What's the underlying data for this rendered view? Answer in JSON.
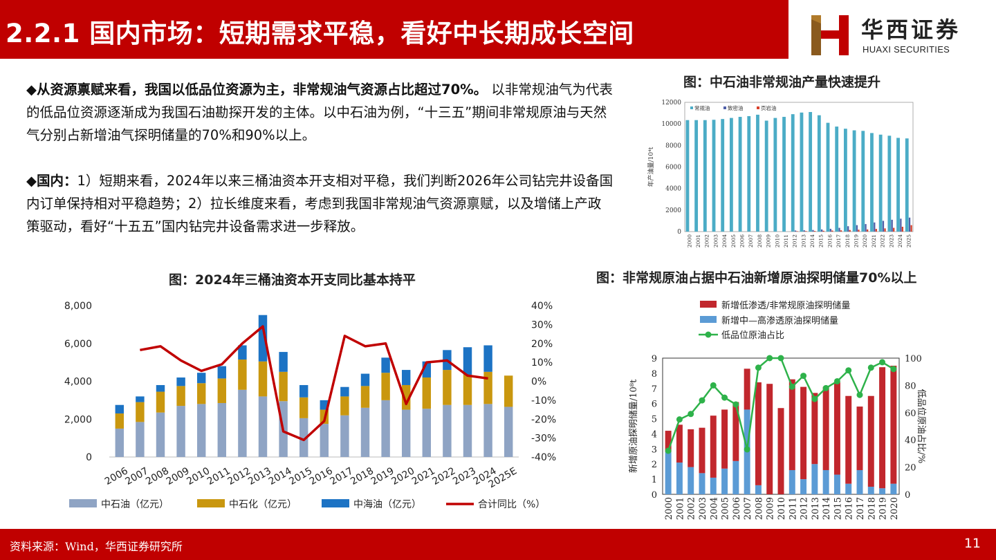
{
  "header": {
    "title": "2.2.1 国内市场：短期需求平稳，看好中长期成长空间"
  },
  "logo": {
    "cn": "华西证券",
    "en": "HUAXI SECURITIES"
  },
  "para1": {
    "bullet": "◆",
    "bold": "从资源禀赋来看，我国以低品位资源为主，非常规油气资源占比超过70%。",
    "text": "以非常规油气为代表的低品位资源逐渐成为我国石油勘探开发的主体。以中石油为例，“十三五”期间非常规原油与天然气分别占新增油气探明储量的70%和90%以上。"
  },
  "para2": {
    "bullet": "◆",
    "bold": "国内：",
    "text": "1）短期来看，2024年以来三桶油资本开支相对平稳，我们判断2026年公司钻完井设备国内订单保持相对平稳趋势；2）拉长维度来看，考虑到我国非常规油气资源禀赋，以及增储上产政策驱动，看好“十五五”国内钻完井设备需求进一步释放。"
  },
  "captions": {
    "top_right": "图：中石油非常规油产量快速提升",
    "bottom_left": "图：2024年三桶油资本开支同比基本持平",
    "bottom_right": "图：非常规原油占据中石油新增原油探明储量70%以上"
  },
  "footer": {
    "source": "资料来源：Wind，华西证券研究所",
    "page": "11"
  },
  "chart_data": [
    {
      "type": "bar",
      "title": "图：中石油非常规油产量快速提升",
      "ylabel": "年产油量/10⁴t",
      "ylim": [
        0,
        12000
      ],
      "yticks": [
        0,
        2000,
        4000,
        6000,
        8000,
        10000,
        12000
      ],
      "categories": [
        "2000",
        "2001",
        "2002",
        "2003",
        "2004",
        "2005",
        "2006",
        "2007",
        "2008",
        "2009",
        "2010",
        "2011",
        "2012",
        "2013",
        "2014",
        "2015",
        "2016",
        "2017",
        "2018",
        "2019",
        "2020",
        "2021",
        "2022",
        "2023",
        "2024",
        "2025"
      ],
      "series": [
        {
          "name": "常规油",
          "color": "#4bacc6",
          "values": [
            10350,
            10350,
            10350,
            10380,
            10450,
            10550,
            10650,
            10720,
            10850,
            10300,
            10550,
            10650,
            10900,
            11050,
            11100,
            10800,
            10100,
            9750,
            9550,
            9400,
            9350,
            9150,
            9000,
            8900,
            8700,
            8650
          ]
        },
        {
          "name": "致密油",
          "color": "#4f5fa8",
          "values": [
            0,
            0,
            0,
            0,
            0,
            0,
            0,
            0,
            0,
            0,
            0,
            0,
            100,
            120,
            150,
            200,
            260,
            350,
            500,
            600,
            700,
            850,
            1000,
            1100,
            1200,
            1300
          ]
        },
        {
          "name": "页岩油",
          "color": "#d9412b",
          "values": [
            0,
            0,
            0,
            0,
            0,
            0,
            0,
            0,
            0,
            0,
            0,
            0,
            40,
            50,
            60,
            80,
            100,
            120,
            150,
            180,
            200,
            250,
            300,
            350,
            450,
            600
          ]
        }
      ]
    },
    {
      "type": "bar",
      "title": "图：2024年三桶油资本开支同比基本持平",
      "categories": [
        "2006",
        "2007",
        "2008",
        "2009",
        "2010",
        "2011",
        "2012",
        "2013",
        "2014",
        "2015",
        "2016",
        "2017",
        "2018",
        "2019",
        "2020",
        "2021",
        "2022",
        "2023",
        "2024",
        "2025E"
      ],
      "ylim": [
        0,
        8000
      ],
      "yticks": [
        "0",
        "2,000",
        "4,000",
        "6,000",
        "8,000"
      ],
      "y2lim": [
        -40,
        40
      ],
      "y2ticks": [
        "-40%",
        "-30%",
        "-20%",
        "-10%",
        "0%",
        "10%",
        "20%",
        "30%",
        "40%"
      ],
      "series": [
        {
          "name": "中石油（亿元）",
          "color": "#8fa4c4",
          "values": [
            1500,
            1850,
            2350,
            2700,
            2800,
            2850,
            3550,
            3200,
            2950,
            2050,
            1750,
            2200,
            2600,
            3000,
            2500,
            2550,
            2750,
            2750,
            2800,
            2650
          ]
        },
        {
          "name": "中石化（亿元）",
          "color": "#c9970f",
          "values": [
            800,
            1050,
            1100,
            1050,
            1100,
            1300,
            1600,
            1850,
            1550,
            1100,
            750,
            1000,
            1150,
            1450,
            1300,
            1650,
            1850,
            1600,
            1700,
            1650
          ]
        },
        {
          "name": "中海油（亿元）",
          "color": "#1c73c4",
          "values": [
            450,
            300,
            350,
            450,
            550,
            650,
            750,
            2450,
            1050,
            650,
            500,
            500,
            650,
            800,
            800,
            850,
            1050,
            1450,
            1400,
            0
          ]
        },
        {
          "name": "合计同比（%）",
          "color": "#c00000",
          "type": "line",
          "values": [
            null,
            16.5,
            18.5,
            11,
            5.5,
            9,
            20,
            29,
            -26.5,
            -31,
            -21,
            24,
            18.5,
            20,
            -12,
            10,
            11,
            3,
            1.5,
            null
          ]
        }
      ]
    },
    {
      "type": "bar",
      "title": "图：非常规原油占据中石油新增原油探明储量70%以上",
      "ylabel": "新增原油探明储量/10⁸t",
      "y2label": "低品位原油占比/%",
      "ylim": [
        0,
        9
      ],
      "y2lim": [
        0,
        100
      ],
      "categories": [
        "2000",
        "2001",
        "2002",
        "2003",
        "2004",
        "2005",
        "2006",
        "2007",
        "2008",
        "2009",
        "2010",
        "2011",
        "2012",
        "2013",
        "2014",
        "2015",
        "2016",
        "2017",
        "2018",
        "2019",
        "2020"
      ],
      "series": [
        {
          "name": "新增低渗透/非常规原油探明储量",
          "color": "#c1272d",
          "values": [
            1.4,
            2.5,
            2.5,
            3.0,
            4.1,
            3.9,
            3.9,
            2.7,
            6.8,
            7.3,
            5.7,
            6.0,
            6.1,
            4.7,
            5.5,
            6.1,
            5.8,
            4.2,
            6.0,
            8.0,
            7.8
          ]
        },
        {
          "name": "新增中—高渗透原油探明储量",
          "color": "#5b9bd5",
          "values": [
            2.8,
            2.1,
            1.8,
            1.4,
            1.1,
            1.7,
            2.2,
            5.6,
            0.6,
            0.0,
            0.0,
            1.6,
            1.0,
            2.0,
            1.6,
            1.3,
            0.7,
            1.6,
            0.5,
            0.4,
            0.7
          ]
        },
        {
          "name": "低品位原油占比",
          "color": "#2eb24a",
          "type": "line",
          "values": [
            32,
            55,
            59,
            69,
            80,
            71,
            66,
            33,
            93,
            100,
            100,
            79,
            87,
            70,
            78,
            83,
            91,
            73,
            93,
            97,
            92
          ]
        }
      ]
    }
  ]
}
